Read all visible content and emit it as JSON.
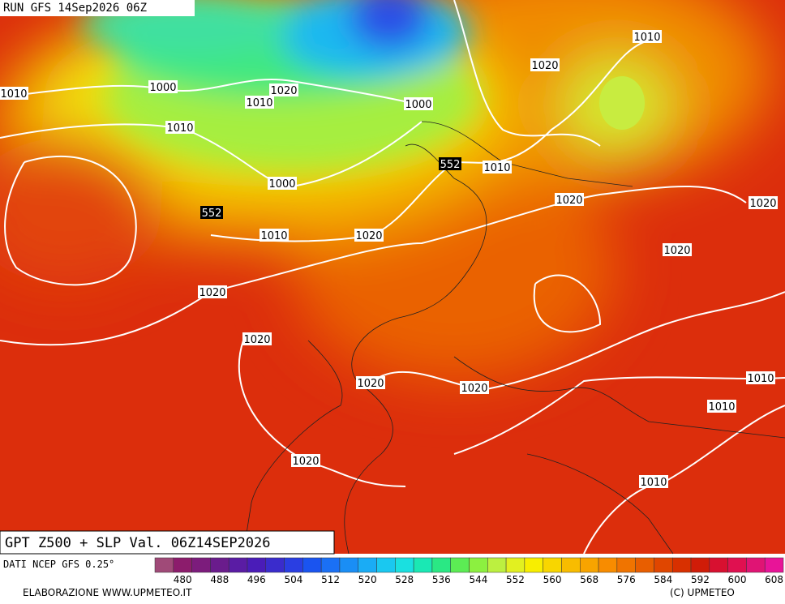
{
  "header": {
    "run": "RUN GFS 14Sep2026 06Z"
  },
  "map": {
    "title": "GPT Z500 + SLP Val. 06Z14SEP2026",
    "contour_labels": [
      "1010",
      "1000",
      "1020",
      "1010",
      "1000",
      "1010",
      "1000",
      "552",
      "1010",
      "1020",
      "552",
      "1010",
      "1020",
      "1010",
      "1020",
      "1020",
      "1020",
      "1020",
      "1020",
      "1020",
      "1020",
      "1010",
      "1010",
      "1020",
      "1010"
    ]
  },
  "footer": {
    "source": "DATI NCEP GFS 0.25°",
    "credit": "ELABORAZIONE WWW.UPMETEO.IT",
    "copyright": "(C) UPMETEO"
  },
  "colorbar": {
    "ticks": [
      480,
      488,
      496,
      504,
      512,
      520,
      528,
      536,
      544,
      552,
      560,
      568,
      576,
      584,
      592,
      600,
      608
    ],
    "colors": [
      "#a04a78",
      "#8c1c6c",
      "#7c1c7c",
      "#6a1c8c",
      "#5a1ca4",
      "#4a1cb8",
      "#3a2ccc",
      "#2a3ee2",
      "#1a54f0",
      "#1a70f5",
      "#1a8ef5",
      "#1aacf5",
      "#1ac8f0",
      "#1ae0e0",
      "#1ae8b4",
      "#2ae884",
      "#5cec54",
      "#8cf040",
      "#bcf040",
      "#e2f020",
      "#f8ee00",
      "#f8d600",
      "#f8bc00",
      "#f8a400",
      "#f88c00",
      "#f07400",
      "#e85e00",
      "#e04600",
      "#d83000",
      "#d01c08",
      "#d81030",
      "#e01050",
      "#e01474",
      "#e81498"
    ]
  }
}
